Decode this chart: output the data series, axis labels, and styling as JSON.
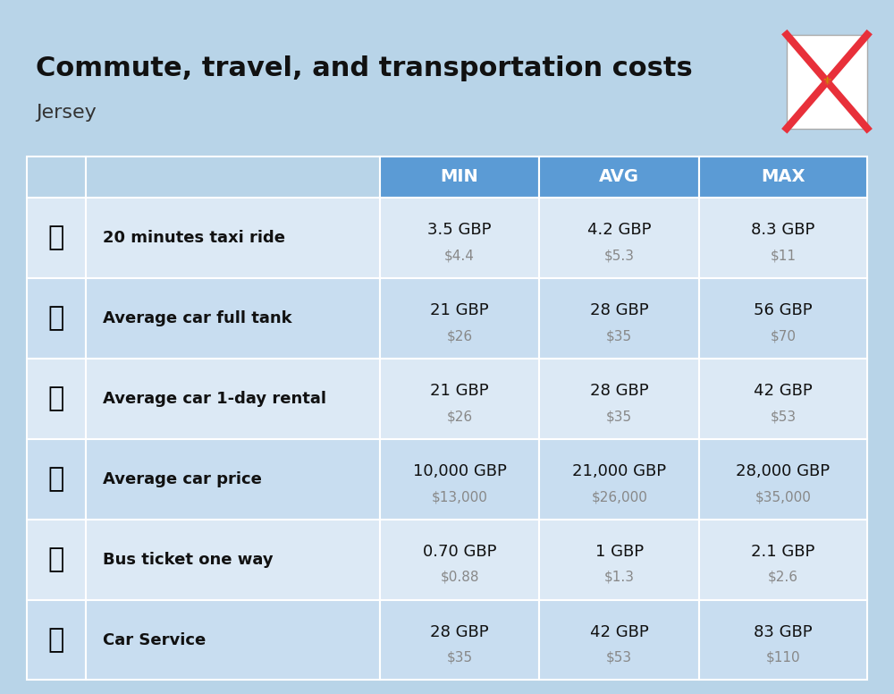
{
  "title": "Commute, travel, and transportation costs",
  "subtitle": "Jersey",
  "background_color": "#b8d4e8",
  "header_color": "#5b9bd5",
  "header_text_color": "#ffffff",
  "row_bg_light": "#dce9f5",
  "row_bg_dark": "#c8ddf0",
  "cell_border_color": "#ffffff",
  "columns": [
    "MIN",
    "AVG",
    "MAX"
  ],
  "rows": [
    {
      "label": "20 minutes taxi ride",
      "emoji": "🚕",
      "min_gbp": "3.5 GBP",
      "min_usd": "$4.4",
      "avg_gbp": "4.2 GBP",
      "avg_usd": "$5.3",
      "max_gbp": "8.3 GBP",
      "max_usd": "$11"
    },
    {
      "label": "Average car full tank",
      "emoji": "⛽",
      "min_gbp": "21 GBP",
      "min_usd": "$26",
      "avg_gbp": "28 GBP",
      "avg_usd": "$35",
      "max_gbp": "56 GBP",
      "max_usd": "$70"
    },
    {
      "label": "Average car 1-day rental",
      "emoji": "🚙",
      "min_gbp": "21 GBP",
      "min_usd": "$26",
      "avg_gbp": "28 GBP",
      "avg_usd": "$35",
      "max_gbp": "42 GBP",
      "max_usd": "$53"
    },
    {
      "label": "Average car price",
      "emoji": "🚗",
      "min_gbp": "10,000 GBP",
      "min_usd": "$13,000",
      "avg_gbp": "21,000 GBP",
      "avg_usd": "$26,000",
      "max_gbp": "28,000 GBP",
      "max_usd": "$35,000"
    },
    {
      "label": "Bus ticket one way",
      "emoji": "🚌",
      "min_gbp": "0.70 GBP",
      "min_usd": "$0.88",
      "avg_gbp": "1 GBP",
      "avg_usd": "$1.3",
      "max_gbp": "2.1 GBP",
      "max_usd": "$2.6"
    },
    {
      "label": "Car Service",
      "emoji": "🚗",
      "min_gbp": "28 GBP",
      "min_usd": "$35",
      "avg_gbp": "42 GBP",
      "avg_usd": "$53",
      "max_gbp": "83 GBP",
      "max_usd": "$110"
    }
  ],
  "icon_emojis": [
    "🚕",
    "⛽️",
    "🚙",
    "🚗",
    "🚌",
    "🔧"
  ],
  "title_fontsize": 22,
  "subtitle_fontsize": 16,
  "header_fontsize": 14,
  "label_fontsize": 13,
  "value_fontsize": 13,
  "usd_fontsize": 11
}
